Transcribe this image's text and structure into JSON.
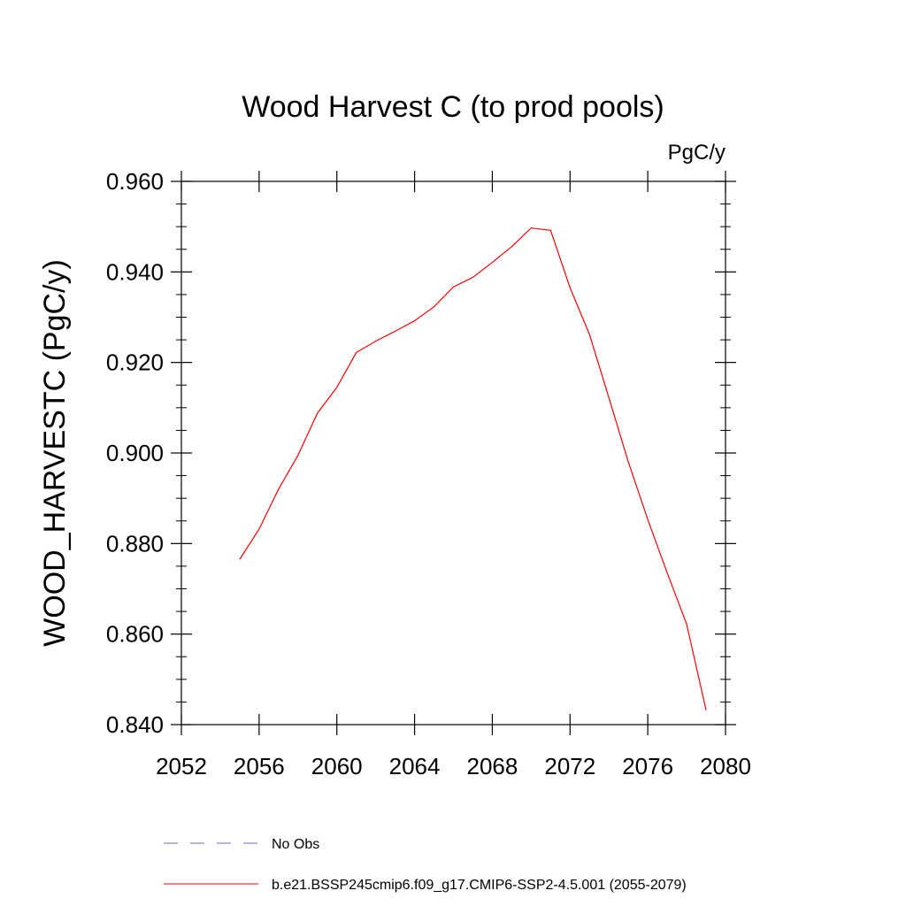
{
  "chart_data": {
    "type": "line",
    "title": "Wood Harvest C (to prod pools)",
    "units": "PgC/y",
    "xlabel": "",
    "ylabel": "WOOD_HARVESTC  (PgC/y)",
    "xlim": [
      2052,
      2080
    ],
    "ylim": [
      0.84,
      0.96
    ],
    "x_ticks": [
      2052,
      2056,
      2060,
      2064,
      2068,
      2072,
      2076,
      2080
    ],
    "x_tick_labels": [
      "2052",
      "2056",
      "2060",
      "2064",
      "2068",
      "2072",
      "2076",
      "2080"
    ],
    "y_ticks": [
      0.84,
      0.86,
      0.88,
      0.9,
      0.92,
      0.94,
      0.96
    ],
    "y_tick_labels": [
      "0.840",
      "0.860",
      "0.880",
      "0.900",
      "0.920",
      "0.940",
      "0.960"
    ],
    "grid": false,
    "legend_position": "bottom",
    "series": [
      {
        "name": "No Obs",
        "color": "#6b6bbf",
        "style": "dashed",
        "x": [],
        "y": []
      },
      {
        "name": "b.e21.BSSP245cmip6.f09_g17.CMIP6-SSP2-4.5.001 (2055-2079)",
        "color": "#ff0000",
        "style": "solid",
        "x": [
          2055,
          2056,
          2057,
          2058,
          2059,
          2060,
          2061,
          2062,
          2063,
          2064,
          2065,
          2066,
          2067,
          2068,
          2069,
          2070,
          2071,
          2072,
          2073,
          2074,
          2075,
          2076,
          2077,
          2078,
          2079
        ],
        "y": [
          0.8765,
          0.8832,
          0.892,
          0.8995,
          0.9088,
          0.9145,
          0.9222,
          0.9247,
          0.9269,
          0.9292,
          0.9323,
          0.9367,
          0.9388,
          0.9421,
          0.9456,
          0.9497,
          0.9492,
          0.9365,
          0.9262,
          0.9122,
          0.898,
          0.8853,
          0.8735,
          0.8622,
          0.8432
        ]
      }
    ]
  }
}
